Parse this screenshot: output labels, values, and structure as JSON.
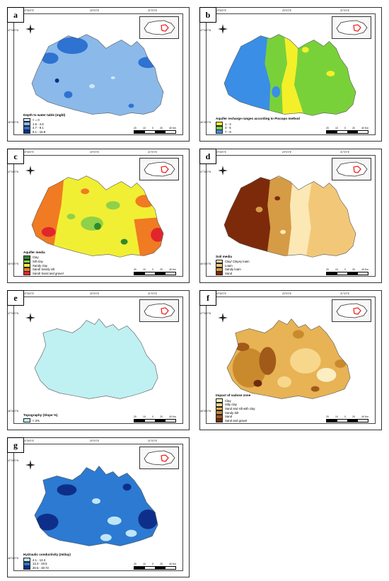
{
  "coords": {
    "lon_left": "19°30'0\"E",
    "lon_mid": "20°0'0\"E",
    "lon_right": "21°0'0\"E",
    "lat_top": "47°30'0\"N",
    "lat_bottom": "46°30'0\"N"
  },
  "scale": {
    "labels": [
      "20",
      "10",
      "0",
      "20",
      "40 Km"
    ]
  },
  "panels": [
    {
      "letter": "a",
      "legend_title": "Depth to water table (mgbl)",
      "shape": "A",
      "items": [
        {
          "label": "< = 0",
          "color": "#cfe6fb"
        },
        {
          "label": "1.5 - 4.6",
          "color": "#8bb9ea"
        },
        {
          "label": "4.7 - 9.1",
          "color": "#2e72d2"
        },
        {
          "label": "9.1 - 15.9",
          "color": "#0b2f86"
        }
      ]
    },
    {
      "letter": "b",
      "legend_title": "Aquifer recharge ranges according to Piscopo method",
      "shape": "A",
      "items": [
        {
          "label": "1 - 3",
          "color": "#f3f02a"
        },
        {
          "label": "3 - 5",
          "color": "#79d13a"
        },
        {
          "label": "7 - 9",
          "color": "#3a8ee6"
        }
      ]
    },
    {
      "letter": "c",
      "legend_title": "Aquifer media",
      "shape": "A",
      "items": [
        {
          "label": "Clay",
          "color": "#2f8a2f"
        },
        {
          "label": "Silt clay",
          "color": "#8fd14a"
        },
        {
          "label": "Sandy clay",
          "color": "#f1ef33"
        },
        {
          "label": "Sand/ Sandy silt",
          "color": "#f07b22"
        },
        {
          "label": "Sand/ Sand and gravel",
          "color": "#e0262b"
        }
      ]
    },
    {
      "letter": "d",
      "legend_title": "Soil media",
      "shape": "A",
      "items": [
        {
          "label": "Clay/ Clayey loam",
          "color": "#fbe8b5"
        },
        {
          "label": "Loam",
          "color": "#f2c878"
        },
        {
          "label": "Sandy loam",
          "color": "#d69b45"
        },
        {
          "label": "Sand",
          "color": "#7d2a0a"
        }
      ]
    },
    {
      "letter": "e",
      "legend_title": "Topography (Slope %)",
      "shape": "B",
      "items": [
        {
          "label": "< 2%",
          "color": "#bff0f2"
        }
      ]
    },
    {
      "letter": "f",
      "legend_title": "Impact of vadose zone",
      "shape": "B",
      "items": [
        {
          "label": "Clay",
          "color": "#fbeec3"
        },
        {
          "label": "Silty clay",
          "color": "#f7d78c"
        },
        {
          "label": "Sand and silt with clay",
          "color": "#e7b354"
        },
        {
          "label": "Sandy Silt",
          "color": "#c98a2d"
        },
        {
          "label": "Sand",
          "color": "#a15a1a"
        },
        {
          "label": "Sand and gravel",
          "color": "#6e2a0c"
        }
      ]
    },
    {
      "letter": "g",
      "legend_title": "Hydraulic conductivity (m/day)",
      "shape": "B",
      "items": [
        {
          "label": "4.1 - 13.3",
          "color": "#bfe6f7"
        },
        {
          "label": "13.3 - 20.5",
          "color": "#2c7ad2"
        },
        {
          "label": "20.5 - 30.72",
          "color": "#0d2f8a"
        }
      ]
    }
  ]
}
